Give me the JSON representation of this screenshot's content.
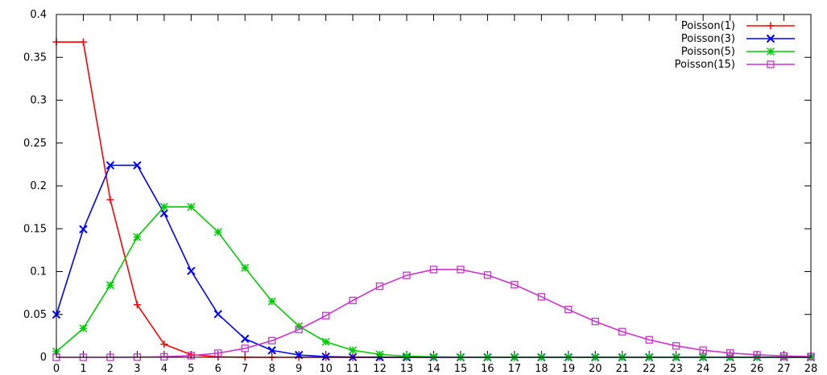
{
  "chart_data": {
    "type": "line",
    "title": "",
    "xlabel": "",
    "ylabel": "",
    "xlim": [
      0,
      28
    ],
    "ylim": [
      0,
      0.4
    ],
    "grid": false,
    "legend_position": "top-right",
    "x_ticks": [
      0,
      1,
      2,
      3,
      4,
      5,
      6,
      7,
      8,
      9,
      10,
      11,
      12,
      13,
      14,
      15,
      16,
      17,
      18,
      19,
      20,
      21,
      22,
      23,
      24,
      25,
      26,
      27,
      28
    ],
    "y_ticks": [
      {
        "value": 0,
        "label": "0"
      },
      {
        "value": 0.05,
        "label": "0.05"
      },
      {
        "value": 0.1,
        "label": "0.1"
      },
      {
        "value": 0.15,
        "label": "0.15"
      },
      {
        "value": 0.2,
        "label": "0.2"
      },
      {
        "value": 0.25,
        "label": "0.25"
      },
      {
        "value": 0.3,
        "label": "0.3"
      },
      {
        "value": 0.35,
        "label": "0.35"
      },
      {
        "value": 0.4,
        "label": "0.4"
      }
    ],
    "series": [
      {
        "name": "Poisson(1)",
        "color": "#ff0000",
        "marker": "plus",
        "x": [
          0,
          1,
          2,
          3,
          4,
          5,
          6,
          7,
          8,
          9,
          10,
          11,
          12,
          13,
          14,
          15,
          16,
          17,
          18,
          19,
          20,
          21,
          22,
          23,
          24,
          25,
          26,
          27,
          28
        ],
        "values": [
          0.3679,
          0.3679,
          0.1839,
          0.0613,
          0.0153,
          0.0031,
          0.0005,
          0.0001,
          0,
          0,
          0,
          0,
          0,
          0,
          0,
          0,
          0,
          0,
          0,
          0,
          0,
          0,
          0,
          0,
          0,
          0,
          0,
          0,
          0
        ]
      },
      {
        "name": "Poisson(3)",
        "color": "#0000ff",
        "marker": "x",
        "x": [
          0,
          1,
          2,
          3,
          4,
          5,
          6,
          7,
          8,
          9,
          10,
          11,
          12,
          13,
          14,
          15,
          16,
          17,
          18,
          19,
          20,
          21,
          22,
          23,
          24,
          25,
          26,
          27,
          28
        ],
        "values": [
          0.0498,
          0.1494,
          0.224,
          0.224,
          0.168,
          0.1008,
          0.0504,
          0.0216,
          0.0081,
          0.0027,
          0.0008,
          0.0002,
          0.0001,
          0,
          0,
          0,
          0,
          0,
          0,
          0,
          0,
          0,
          0,
          0,
          0,
          0,
          0,
          0,
          0
        ]
      },
      {
        "name": "Poisson(5)",
        "color": "#00cc00",
        "marker": "star",
        "x": [
          0,
          1,
          2,
          3,
          4,
          5,
          6,
          7,
          8,
          9,
          10,
          11,
          12,
          13,
          14,
          15,
          16,
          17,
          18,
          19,
          20,
          21,
          22,
          23,
          24,
          25,
          26,
          27,
          28
        ],
        "values": [
          0.0067,
          0.0337,
          0.0842,
          0.1404,
          0.1755,
          0.1755,
          0.1462,
          0.1044,
          0.0653,
          0.0363,
          0.0181,
          0.0082,
          0.0034,
          0.0013,
          0.0005,
          0.0002,
          0,
          0,
          0,
          0,
          0,
          0,
          0,
          0,
          0,
          0,
          0,
          0,
          0
        ]
      },
      {
        "name": "Poisson(15)",
        "color": "#cc33cc",
        "marker": "square",
        "x": [
          0,
          1,
          2,
          3,
          4,
          5,
          6,
          7,
          8,
          9,
          10,
          11,
          12,
          13,
          14,
          15,
          16,
          17,
          18,
          19,
          20,
          21,
          22,
          23,
          24,
          25,
          26,
          27,
          28
        ],
        "values": [
          0,
          0,
          0,
          0.0002,
          0.0006,
          0.0019,
          0.0048,
          0.0104,
          0.0194,
          0.0324,
          0.0486,
          0.0663,
          0.0829,
          0.0956,
          0.1024,
          0.1024,
          0.096,
          0.0847,
          0.0706,
          0.0557,
          0.0418,
          0.0299,
          0.0204,
          0.0133,
          0.0083,
          0.005,
          0.0029,
          0.0016,
          0.0009
        ]
      }
    ]
  }
}
